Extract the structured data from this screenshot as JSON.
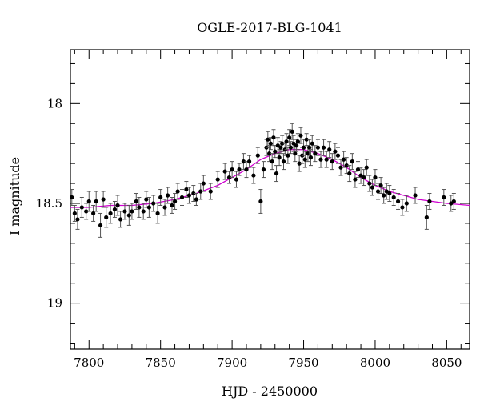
{
  "chart_data": {
    "type": "scatter",
    "title": "OGLE-2017-BLG-1041",
    "xlabel": "HJD - 2450000",
    "ylabel": "I magnitude",
    "xlim": [
      7787,
      8066
    ],
    "ylim": [
      18.82,
      20.25
    ],
    "y_inverted": true,
    "y_display_offset": 0,
    "grid": false,
    "x_ticks": [
      7800,
      7850,
      7900,
      7950,
      8000,
      8050
    ],
    "y_ticks": [
      18,
      18.5,
      19
    ],
    "colors": {
      "model": "#d000d0",
      "points": "#000000"
    },
    "model_curve": {
      "name": "",
      "x": [
        7787,
        7800,
        7815,
        7830,
        7845,
        7860,
        7875,
        7890,
        7900,
        7910,
        7920,
        7930,
        7940,
        7945,
        7950,
        7960,
        7970,
        7980,
        7990,
        8000,
        8010,
        8020,
        8030,
        8040,
        8050,
        8066
      ],
      "y": [
        18.52,
        18.52,
        18.51,
        18.51,
        18.5,
        18.48,
        18.45,
        18.41,
        18.37,
        18.33,
        18.28,
        18.25,
        18.23,
        18.23,
        18.23,
        18.25,
        18.28,
        18.32,
        18.37,
        18.41,
        18.44,
        18.46,
        18.48,
        18.49,
        18.5,
        18.51
      ]
    },
    "series": [
      {
        "x": [
          7788,
          7790,
          7792,
          7795,
          7798,
          7800,
          7803,
          7805,
          7808,
          7810,
          7812,
          7815,
          7818,
          7820,
          7822,
          7825,
          7828,
          7830,
          7833,
          7835,
          7838,
          7840,
          7842,
          7845,
          7848,
          7850,
          7853,
          7855,
          7858,
          7860,
          7862,
          7865,
          7868,
          7870,
          7873,
          7875,
          7878,
          7880,
          7885,
          7890,
          7895,
          7898,
          7900,
          7903,
          7905,
          7908,
          7910,
          7912,
          7915,
          7918,
          7920,
          7922,
          7924,
          7925,
          7926,
          7927,
          7928,
          7929,
          7930,
          7931,
          7932,
          7933,
          7934,
          7935,
          7936,
          7937,
          7938,
          7939,
          7940,
          7941,
          7942,
          7943,
          7944,
          7945,
          7946,
          7947,
          7948,
          7949,
          7950,
          7951,
          7952,
          7953,
          7954,
          7955,
          7956,
          7958,
          7960,
          7962,
          7964,
          7966,
          7968,
          7970,
          7972,
          7974,
          7976,
          7978,
          7980,
          7982,
          7984,
          7986,
          7988,
          7990,
          7992,
          7994,
          7996,
          7998,
          8000,
          8002,
          8004,
          8006,
          8008,
          8010,
          8013,
          8016,
          8019,
          8022,
          8028,
          8036,
          8038,
          8048,
          8053,
          8055
        ],
        "y": [
          18.47,
          18.55,
          18.58,
          18.52,
          18.54,
          18.49,
          18.55,
          18.49,
          18.61,
          18.48,
          18.57,
          18.55,
          18.53,
          18.51,
          18.58,
          18.54,
          18.56,
          18.54,
          18.49,
          18.52,
          18.54,
          18.48,
          18.52,
          18.5,
          18.55,
          18.47,
          18.52,
          18.46,
          18.51,
          18.49,
          18.44,
          18.47,
          18.43,
          18.46,
          18.45,
          18.48,
          18.44,
          18.4,
          18.44,
          18.38,
          18.34,
          18.37,
          18.33,
          18.38,
          18.33,
          18.29,
          18.33,
          18.29,
          18.36,
          18.26,
          18.49,
          18.33,
          18.22,
          18.18,
          18.25,
          18.2,
          18.29,
          18.17,
          18.24,
          18.35,
          18.21,
          18.27,
          18.22,
          18.2,
          18.29,
          18.23,
          18.19,
          18.26,
          18.17,
          18.22,
          18.14,
          18.2,
          18.25,
          18.21,
          18.19,
          18.3,
          18.16,
          18.26,
          18.22,
          18.28,
          18.18,
          18.25,
          18.22,
          18.27,
          18.2,
          18.25,
          18.22,
          18.28,
          18.22,
          18.28,
          18.23,
          18.29,
          18.24,
          18.26,
          18.32,
          18.28,
          18.31,
          18.35,
          18.29,
          18.38,
          18.33,
          18.36,
          18.37,
          18.32,
          18.4,
          18.42,
          18.37,
          18.44,
          18.41,
          18.46,
          18.44,
          18.45,
          18.47,
          18.49,
          18.52,
          18.5,
          18.46,
          18.57,
          18.49,
          18.47,
          18.5,
          18.49
        ],
        "yerr": [
          0.04,
          0.04,
          0.05,
          0.05,
          0.04,
          0.05,
          0.04,
          0.05,
          0.06,
          0.04,
          0.05,
          0.05,
          0.04,
          0.05,
          0.04,
          0.04,
          0.05,
          0.04,
          0.04,
          0.05,
          0.04,
          0.04,
          0.05,
          0.04,
          0.05,
          0.04,
          0.04,
          0.04,
          0.04,
          0.04,
          0.04,
          0.04,
          0.04,
          0.04,
          0.04,
          0.03,
          0.04,
          0.04,
          0.04,
          0.04,
          0.04,
          0.03,
          0.04,
          0.04,
          0.03,
          0.04,
          0.04,
          0.03,
          0.04,
          0.04,
          0.06,
          0.04,
          0.04,
          0.04,
          0.04,
          0.03,
          0.04,
          0.04,
          0.03,
          0.04,
          0.04,
          0.04,
          0.03,
          0.04,
          0.04,
          0.03,
          0.04,
          0.04,
          0.04,
          0.03,
          0.04,
          0.04,
          0.04,
          0.03,
          0.04,
          0.04,
          0.04,
          0.04,
          0.04,
          0.04,
          0.03,
          0.04,
          0.04,
          0.04,
          0.04,
          0.04,
          0.04,
          0.04,
          0.04,
          0.04,
          0.04,
          0.04,
          0.04,
          0.04,
          0.04,
          0.04,
          0.04,
          0.04,
          0.04,
          0.04,
          0.04,
          0.04,
          0.04,
          0.04,
          0.04,
          0.04,
          0.04,
          0.04,
          0.04,
          0.04,
          0.04,
          0.04,
          0.04,
          0.04,
          0.04,
          0.04,
          0.04,
          0.06,
          0.04,
          0.04,
          0.04,
          0.04
        ]
      }
    ]
  }
}
